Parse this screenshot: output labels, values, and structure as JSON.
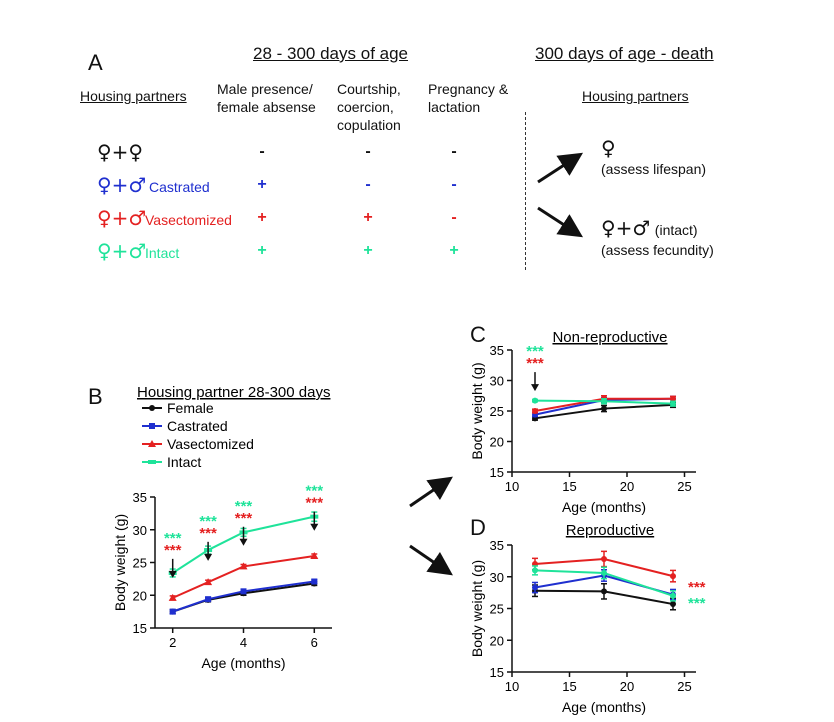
{
  "colors": {
    "female": "#111111",
    "castrated": "#1f2fcf",
    "vasectomized": "#e42121",
    "intact": "#1fe39a"
  },
  "panelA": {
    "letter": "A",
    "header_left": "28 - 300 days of age",
    "header_right": "300 days of age - death",
    "housing_left": "Housing partners",
    "housing_right": "Housing partners",
    "col1": "Male presence/ female absense",
    "col2": "Courtship, coercion, copulation",
    "col3": "Pregnancy & lactation",
    "rows": [
      {
        "symbol": "♀+♀",
        "label": "",
        "marks": [
          "-",
          "-",
          "-"
        ],
        "color": "#111111",
        "mark_colors": [
          "#111111",
          "#111111",
          "#111111"
        ]
      },
      {
        "symbol": "♀+♂",
        "label": "Castrated",
        "marks": [
          "+",
          "-",
          "-"
        ],
        "color": "#1f2fcf",
        "mark_colors": [
          "#1f2fcf",
          "#1f2fcf",
          "#1f2fcf"
        ]
      },
      {
        "symbol": "♀+♂",
        "label": "Vasectomized",
        "marks": [
          "+",
          "+",
          "-"
        ],
        "color": "#e42121",
        "mark_colors": [
          "#e42121",
          "#e42121",
          "#e42121"
        ]
      },
      {
        "symbol": "♀+♂",
        "label": "Intact",
        "marks": [
          "+",
          "+",
          "+"
        ],
        "color": "#1fe39a",
        "mark_colors": [
          "#1fe39a",
          "#1fe39a",
          "#1fe39a"
        ]
      }
    ],
    "right_top_symbol": "♀",
    "right_top_text": "(assess lifespan)",
    "right_bottom_symbol": "♀+♂",
    "right_bottom_label": "(intact)",
    "right_bottom_text": "(assess fecundity)"
  },
  "chart_data": [
    {
      "panel": "B",
      "type": "line",
      "legend_title": "Housing partner 28-300 days",
      "xlabel": "Age (months)",
      "ylabel": "Body weight (g)",
      "xlim": [
        1.5,
        6.5
      ],
      "ylim": [
        15,
        35
      ],
      "xticks": [
        2,
        4,
        6
      ],
      "yticks": [
        15,
        20,
        25,
        30,
        35
      ],
      "x": [
        2,
        3,
        4,
        6
      ],
      "series": [
        {
          "name": "Female",
          "values": [
            17.5,
            19.3,
            20.3,
            21.8
          ],
          "err": [
            0.3,
            0.3,
            0.3,
            0.3
          ],
          "color": "#111111",
          "marker": "circle"
        },
        {
          "name": "Castrated",
          "values": [
            17.5,
            19.4,
            20.6,
            22.1
          ],
          "err": [
            0.3,
            0.3,
            0.3,
            0.3
          ],
          "color": "#1f2fcf",
          "marker": "square"
        },
        {
          "name": "Vasectomized",
          "values": [
            19.6,
            22.0,
            24.4,
            26.0
          ],
          "err": [
            0.3,
            0.3,
            0.3,
            0.3
          ],
          "color": "#e42121",
          "marker": "triangle"
        },
        {
          "name": "Intact",
          "values": [
            23.4,
            26.9,
            29.6,
            32.0
          ],
          "err": [
            0.6,
            0.6,
            0.6,
            0.7
          ],
          "color": "#1fe39a",
          "marker": "bar"
        }
      ],
      "annotations": [
        {
          "x": 2,
          "y_top": 28.0,
          "green": "***",
          "red": "***"
        },
        {
          "x": 3,
          "y_top": 30.6,
          "green": "***",
          "red": "***"
        },
        {
          "x": 4,
          "y_top": 32.9,
          "green": "***",
          "red": "***"
        },
        {
          "x": 6,
          "y_top": 35.2,
          "green": "***",
          "red": "***"
        }
      ]
    },
    {
      "panel": "C",
      "type": "line",
      "title": "Non-reproductive",
      "xlabel": "Age (months)",
      "ylabel": "Body weight (g)",
      "xlim": [
        10,
        26
      ],
      "ylim": [
        15,
        35
      ],
      "xticks": [
        10,
        15,
        20,
        25
      ],
      "yticks": [
        15,
        20,
        25,
        30,
        35
      ],
      "x": [
        12,
        18,
        24
      ],
      "series": [
        {
          "name": "Female",
          "values": [
            23.8,
            25.4,
            26.0
          ],
          "err": [
            0.3,
            0.5,
            0.4
          ],
          "color": "#111111"
        },
        {
          "name": "Castrated",
          "values": [
            24.4,
            26.8,
            27.0
          ],
          "err": [
            0.3,
            0.4,
            0.4
          ],
          "color": "#1f2fcf"
        },
        {
          "name": "Vasectomized",
          "values": [
            25.0,
            27.0,
            27.0
          ],
          "err": [
            0.3,
            0.5,
            0.4
          ],
          "color": "#e42121"
        },
        {
          "name": "Intact",
          "values": [
            26.7,
            26.6,
            26.2
          ],
          "err": [
            0.2,
            0.4,
            0.4
          ],
          "color": "#1fe39a"
        }
      ],
      "annotations": [
        {
          "x": 12,
          "y_top": 34.0,
          "green": "***",
          "red": "***"
        }
      ]
    },
    {
      "panel": "D",
      "type": "line",
      "title": "Reproductive",
      "xlabel": "Age (months)",
      "ylabel": "Body weight (g)",
      "xlim": [
        10,
        26
      ],
      "ylim": [
        15,
        35
      ],
      "xticks": [
        10,
        15,
        20,
        25
      ],
      "yticks": [
        15,
        20,
        25,
        30,
        35
      ],
      "x": [
        12,
        18,
        24
      ],
      "series": [
        {
          "name": "Female",
          "values": [
            27.8,
            27.7,
            25.7
          ],
          "err": [
            0.9,
            1.2,
            0.9
          ],
          "color": "#111111"
        },
        {
          "name": "Castrated",
          "values": [
            28.3,
            30.2,
            27.2
          ],
          "err": [
            0.8,
            0.9,
            0.8
          ],
          "color": "#1f2fcf"
        },
        {
          "name": "Vasectomized",
          "values": [
            32.0,
            32.8,
            30.1
          ],
          "err": [
            0.9,
            1.2,
            0.9
          ],
          "color": "#e42121"
        },
        {
          "name": "Intact",
          "values": [
            31.0,
            30.6,
            27.0
          ],
          "err": [
            0.7,
            0.9,
            0.8
          ],
          "color": "#1fe39a"
        }
      ],
      "side_marks": [
        {
          "text": "***",
          "color": "#e42121"
        },
        {
          "text": "***",
          "color": "#1fe39a"
        }
      ]
    }
  ]
}
